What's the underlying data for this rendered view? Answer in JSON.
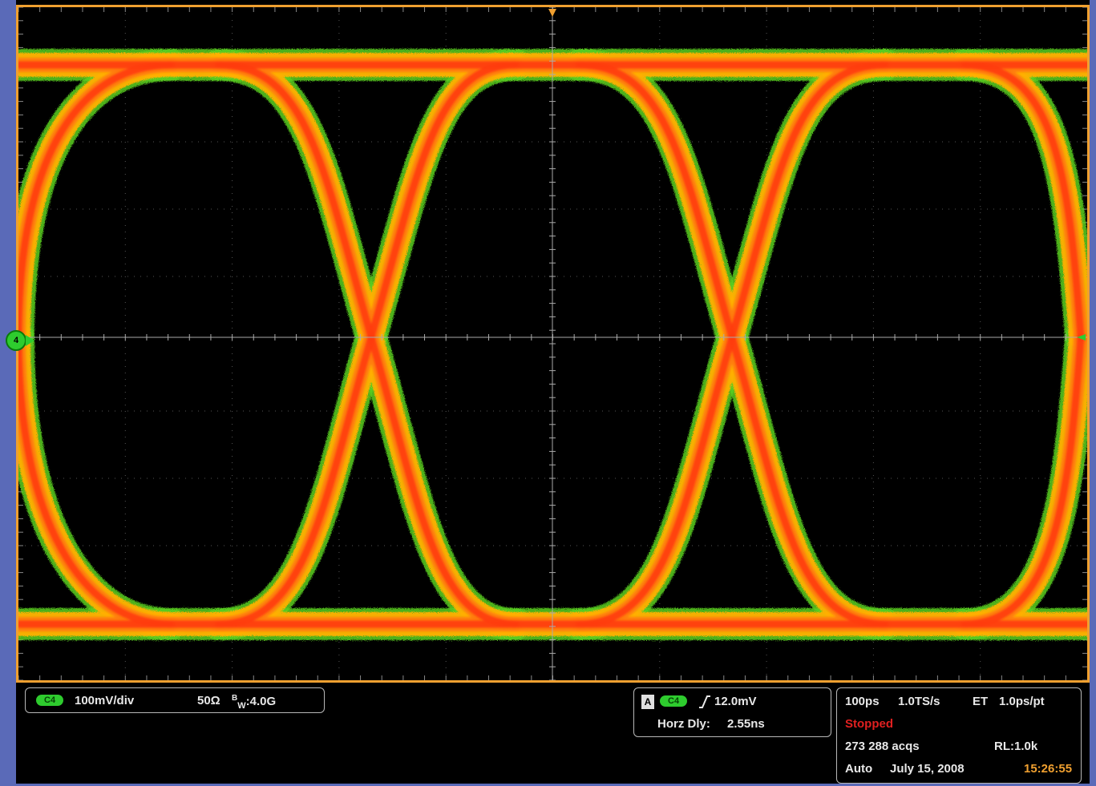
{
  "channel_marker": {
    "number": "4"
  },
  "vertical": {
    "channel_badge": "C4",
    "scale": "100mV/div",
    "termination": "50Ω",
    "bandwidth_prefix": "B",
    "bandwidth_sub": "W",
    "bandwidth_value": ":4.0G"
  },
  "trigger": {
    "source_label": "A",
    "channel_badge": "C4",
    "slope_icon": "rising-edge-icon",
    "level": "12.0mV",
    "horz_dly_label": "Horz Dly:",
    "horz_dly_value": "2.55ns"
  },
  "acquisition": {
    "timebase": "100ps",
    "sample_rate": "1.0TS/s",
    "mode": "ET",
    "resolution": "1.0ps/pt",
    "status": "Stopped",
    "status_color": "#e02020",
    "acq_count": "273 288 acqs",
    "record_length": "RL:1.0k",
    "trigger_mode": "Auto",
    "date": "July 15, 2008",
    "time": "15:26:55",
    "time_color": "#f0a030"
  },
  "colors": {
    "frame": "#5a6ab8",
    "screen_border": "#f0a030",
    "trace_core": "#ff3a10",
    "trace_mid": "#ffb000",
    "trace_edge": "#5ad020",
    "channel": "#2ecc2e"
  }
}
